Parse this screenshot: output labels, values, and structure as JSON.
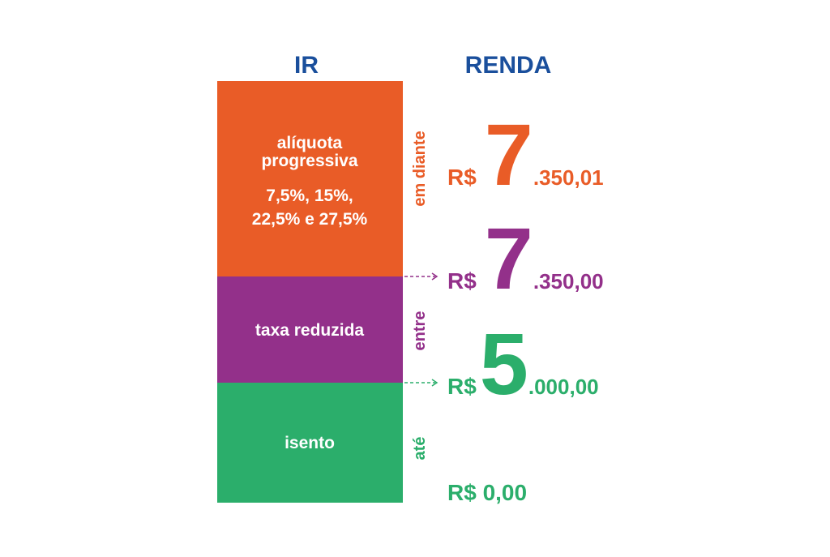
{
  "header": {
    "left": "IR",
    "right": "RENDA"
  },
  "blocks": [
    {
      "lines": [
        "alíquota",
        "progressiva",
        "7,5%, 15%,",
        "22,5% e 27,5%"
      ],
      "range": "em diante"
    },
    {
      "lines": [
        "taxa reduzida"
      ],
      "range": "entre"
    },
    {
      "lines": [
        "isento"
      ],
      "range": "até"
    }
  ],
  "amounts": [
    {
      "currency": "R$",
      "lead": "7",
      "rest": ".350,01"
    },
    {
      "currency": "R$",
      "lead": "7",
      "rest": ".350,00"
    },
    {
      "currency": "R$",
      "lead": "5",
      "rest": ".000,00"
    },
    {
      "text": "R$ 0,00"
    }
  ]
}
